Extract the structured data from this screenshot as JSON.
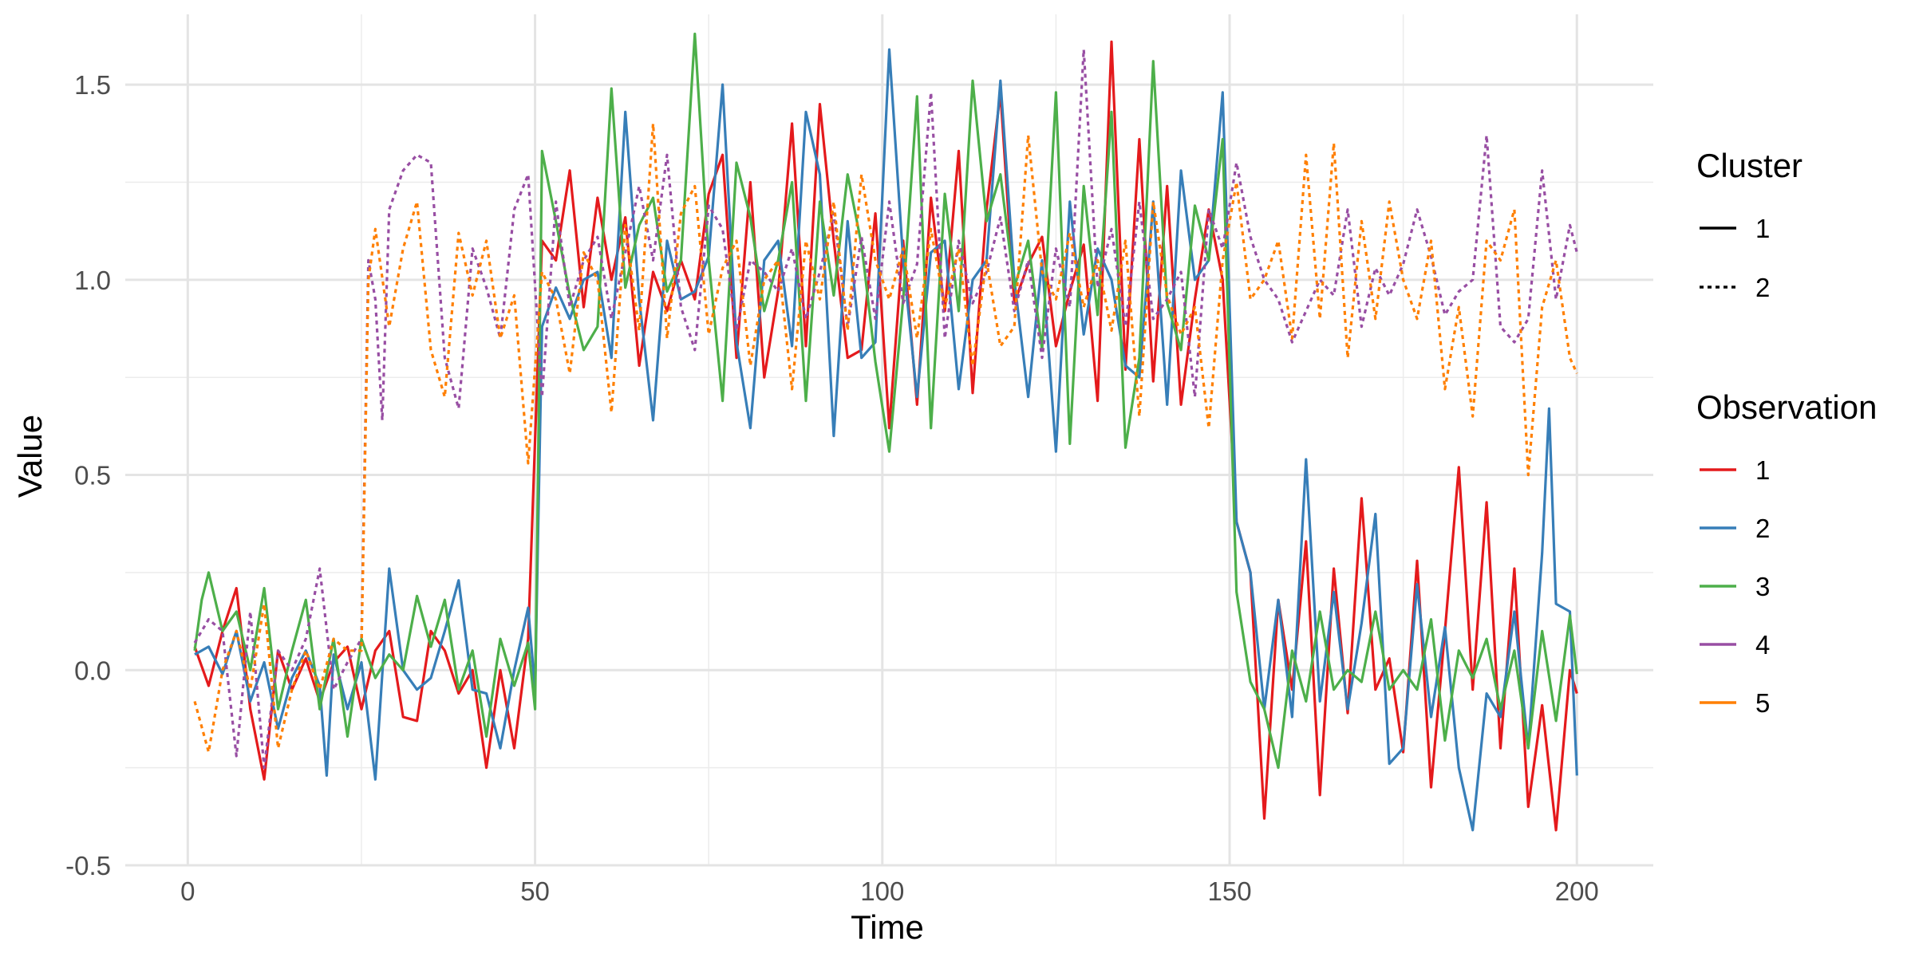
{
  "chart_data": {
    "type": "line",
    "xlabel": "Time",
    "ylabel": "Value",
    "xlim": [
      -9,
      211
    ],
    "ylim": [
      -0.5,
      1.68
    ],
    "x_ticks": [
      0,
      50,
      100,
      150,
      200
    ],
    "x_tick_labels": [
      "0",
      "50",
      "100",
      "150",
      "200"
    ],
    "y_ticks": [
      -0.5,
      0,
      0.5,
      1,
      1.5
    ],
    "y_tick_labels": [
      "-0.5",
      "0.0",
      "0.5",
      "1.0",
      "1.5"
    ],
    "grid": true,
    "legend_position": "right",
    "legend_cluster": {
      "title": "Cluster",
      "items": [
        {
          "label": "1",
          "linetype": "solid"
        },
        {
          "label": "2",
          "linetype": "dotted"
        }
      ]
    },
    "legend_observation": {
      "title": "Observation",
      "items": [
        {
          "label": "1",
          "color": "#e41a1c"
        },
        {
          "label": "2",
          "color": "#377eb8"
        },
        {
          "label": "3",
          "color": "#4daf4a"
        },
        {
          "label": "4",
          "color": "#984ea3"
        },
        {
          "label": "5",
          "color": "#ff7f00"
        }
      ]
    },
    "series": [
      {
        "observation": "1",
        "cluster": "1",
        "color": "#e41a1c",
        "linetype": "solid",
        "x": [
          1,
          3,
          5,
          7,
          9,
          11,
          13,
          15,
          17,
          19,
          21,
          23,
          25,
          27,
          29,
          31,
          33,
          35,
          37,
          39,
          41,
          43,
          45,
          47,
          49,
          51,
          53,
          55,
          57,
          59,
          61,
          63,
          65,
          67,
          69,
          71,
          73,
          75,
          77,
          79,
          81,
          83,
          85,
          87,
          89,
          91,
          93,
          95,
          97,
          99,
          101,
          103,
          105,
          107,
          109,
          111,
          113,
          115,
          117,
          119,
          121,
          123,
          125,
          127,
          129,
          131,
          133,
          135,
          137,
          139,
          141,
          143,
          145,
          147,
          149,
          151,
          153,
          155,
          157,
          159,
          161,
          163,
          165,
          167,
          169,
          171,
          173,
          175,
          177,
          179,
          181,
          183,
          185,
          187,
          189,
          191,
          193,
          195,
          197,
          199,
          200
        ],
        "y": [
          0.06,
          -0.04,
          0.1,
          0.21,
          -0.1,
          -0.28,
          0.05,
          -0.05,
          0.03,
          -0.08,
          0.02,
          0.06,
          -0.1,
          0.05,
          0.1,
          -0.12,
          -0.13,
          0.1,
          0.05,
          -0.06,
          0.0,
          -0.25,
          0.0,
          -0.2,
          0.08,
          1.1,
          1.05,
          1.28,
          0.93,
          1.21,
          1.0,
          1.16,
          0.78,
          1.02,
          0.92,
          1.05,
          0.95,
          1.22,
          1.32,
          0.8,
          1.25,
          0.75,
          0.97,
          1.4,
          0.83,
          1.45,
          1.1,
          0.8,
          0.82,
          1.17,
          0.62,
          1.1,
          0.68,
          1.21,
          0.92,
          1.33,
          0.71,
          1.18,
          1.48,
          0.94,
          1.04,
          1.11,
          0.83,
          0.97,
          1.09,
          0.69,
          1.61,
          0.77,
          1.36,
          0.74,
          1.24,
          0.68,
          0.95,
          1.18,
          1.0,
          0.38,
          0.25,
          -0.38,
          0.18,
          -0.05,
          0.33,
          -0.32,
          0.26,
          -0.11,
          0.44,
          -0.05,
          0.03,
          -0.21,
          0.28,
          -0.3,
          0.1,
          0.52,
          -0.05,
          0.43,
          -0.2,
          0.26,
          -0.35,
          -0.09,
          -0.41,
          0.0,
          -0.06
        ]
      },
      {
        "observation": "2",
        "cluster": "1",
        "color": "#377eb8",
        "linetype": "solid",
        "x": [
          1,
          3,
          5,
          7,
          9,
          11,
          13,
          15,
          17,
          19,
          20,
          21,
          23,
          25,
          27,
          29,
          31,
          33,
          35,
          37,
          39,
          41,
          43,
          45,
          47,
          49,
          50,
          51,
          53,
          55,
          57,
          59,
          61,
          63,
          65,
          67,
          69,
          71,
          73,
          75,
          77,
          79,
          81,
          83,
          85,
          87,
          89,
          91,
          93,
          95,
          97,
          99,
          101,
          103,
          105,
          107,
          109,
          111,
          113,
          115,
          117,
          119,
          121,
          123,
          125,
          127,
          129,
          131,
          133,
          135,
          137,
          139,
          141,
          143,
          145,
          147,
          149,
          151,
          153,
          155,
          157,
          159,
          161,
          163,
          165,
          167,
          169,
          171,
          173,
          175,
          177,
          179,
          181,
          183,
          185,
          187,
          189,
          191,
          193,
          195,
          196,
          197,
          199,
          200
        ],
        "y": [
          0.04,
          0.06,
          -0.01,
          0.1,
          -0.08,
          0.02,
          -0.15,
          -0.02,
          0.05,
          -0.04,
          -0.27,
          0.04,
          -0.1,
          0.02,
          -0.28,
          0.26,
          0.0,
          -0.05,
          -0.02,
          0.1,
          0.23,
          -0.05,
          -0.06,
          -0.2,
          0.0,
          0.16,
          -0.05,
          0.88,
          0.98,
          0.9,
          1.0,
          1.02,
          0.8,
          1.43,
          0.95,
          0.64,
          1.1,
          0.95,
          0.97,
          1.06,
          1.5,
          0.84,
          0.62,
          1.05,
          1.1,
          0.83,
          1.43,
          1.27,
          0.6,
          1.15,
          0.8,
          0.84,
          1.59,
          1.05,
          0.7,
          1.07,
          1.1,
          0.72,
          1.0,
          1.05,
          1.51,
          1.0,
          0.7,
          1.05,
          0.56,
          1.2,
          0.86,
          1.08,
          1.0,
          0.78,
          0.75,
          1.2,
          0.68,
          1.28,
          1.0,
          1.05,
          1.48,
          0.38,
          0.25,
          -0.1,
          0.18,
          -0.12,
          0.54,
          -0.08,
          0.2,
          -0.1,
          0.12,
          0.4,
          -0.24,
          -0.2,
          0.22,
          -0.12,
          0.11,
          -0.25,
          -0.41,
          -0.06,
          -0.12,
          0.15,
          -0.2,
          0.3,
          0.67,
          0.17,
          0.15,
          -0.27
        ]
      },
      {
        "observation": "3",
        "cluster": "1",
        "color": "#4daf4a",
        "linetype": "solid",
        "x": [
          1,
          2,
          3,
          5,
          7,
          9,
          11,
          13,
          15,
          17,
          19,
          21,
          23,
          25,
          27,
          29,
          31,
          33,
          35,
          37,
          39,
          41,
          43,
          45,
          47,
          49,
          50,
          51,
          53,
          55,
          57,
          59,
          61,
          63,
          65,
          67,
          69,
          71,
          73,
          75,
          77,
          79,
          81,
          83,
          85,
          87,
          89,
          91,
          93,
          95,
          97,
          99,
          101,
          103,
          105,
          107,
          109,
          111,
          113,
          115,
          117,
          119,
          121,
          123,
          125,
          127,
          129,
          131,
          133,
          135,
          137,
          139,
          141,
          143,
          145,
          147,
          149,
          151,
          153,
          155,
          157,
          159,
          161,
          163,
          165,
          167,
          169,
          171,
          173,
          175,
          177,
          179,
          181,
          183,
          185,
          187,
          189,
          191,
          193,
          195,
          197,
          199,
          200
        ],
        "y": [
          0.05,
          0.18,
          0.25,
          0.1,
          0.15,
          0.0,
          0.21,
          -0.1,
          0.05,
          0.18,
          -0.1,
          0.08,
          -0.17,
          0.08,
          -0.02,
          0.04,
          0.0,
          0.19,
          0.06,
          0.18,
          -0.05,
          0.05,
          -0.17,
          0.08,
          -0.04,
          0.07,
          -0.1,
          1.33,
          1.15,
          0.96,
          0.82,
          0.88,
          1.49,
          0.98,
          1.14,
          1.21,
          0.97,
          1.05,
          1.63,
          1.05,
          0.69,
          1.3,
          1.16,
          0.92,
          1.05,
          1.25,
          0.69,
          1.2,
          0.96,
          1.27,
          1.09,
          0.79,
          0.56,
          0.95,
          1.47,
          0.62,
          1.22,
          0.92,
          1.51,
          1.15,
          1.27,
          0.98,
          1.1,
          0.82,
          1.48,
          0.58,
          1.24,
          0.91,
          1.43,
          0.57,
          0.8,
          1.56,
          0.94,
          0.82,
          1.19,
          1.05,
          1.36,
          0.2,
          -0.03,
          -0.1,
          -0.25,
          0.05,
          -0.08,
          0.15,
          -0.05,
          0.0,
          -0.03,
          0.15,
          -0.05,
          0.0,
          -0.05,
          0.13,
          -0.18,
          0.05,
          -0.02,
          0.08,
          -0.1,
          0.05,
          -0.2,
          0.1,
          -0.13,
          0.14,
          -0.01
        ]
      },
      {
        "observation": "4",
        "cluster": "2",
        "color": "#984ea3",
        "linetype": "dotted",
        "x": [
          1,
          3,
          5,
          7,
          9,
          11,
          13,
          15,
          17,
          19,
          21,
          23,
          25,
          26,
          27,
          28,
          29,
          31,
          33,
          35,
          37,
          39,
          41,
          43,
          45,
          47,
          49,
          51,
          53,
          55,
          57,
          59,
          61,
          63,
          65,
          67,
          69,
          71,
          73,
          75,
          77,
          79,
          81,
          83,
          85,
          87,
          89,
          91,
          93,
          95,
          97,
          99,
          101,
          103,
          105,
          107,
          109,
          111,
          113,
          115,
          117,
          119,
          121,
          123,
          125,
          127,
          129,
          131,
          133,
          135,
          137,
          139,
          141,
          143,
          145,
          147,
          149,
          151,
          153,
          155,
          157,
          159,
          161,
          163,
          165,
          167,
          169,
          171,
          173,
          175,
          177,
          179,
          181,
          183,
          185,
          187,
          189,
          191,
          193,
          195,
          197,
          199,
          200
        ],
        "y": [
          0.07,
          0.13,
          0.1,
          -0.22,
          0.15,
          -0.25,
          0.05,
          0.0,
          0.08,
          0.26,
          -0.05,
          0.02,
          0.08,
          1.05,
          0.95,
          0.64,
          1.18,
          1.28,
          1.32,
          1.3,
          0.8,
          0.67,
          1.08,
          0.98,
          0.85,
          1.18,
          1.27,
          0.7,
          1.2,
          0.93,
          1.05,
          1.11,
          0.9,
          1.07,
          1.24,
          1.05,
          1.32,
          0.93,
          0.82,
          1.19,
          1.13,
          0.87,
          1.05,
          1.02,
          0.97,
          1.08,
          0.9,
          1.02,
          1.17,
          0.88,
          1.11,
          0.9,
          1.2,
          0.94,
          1.04,
          1.48,
          0.85,
          1.1,
          0.94,
          1.02,
          1.16,
          0.92,
          1.05,
          0.8,
          1.08,
          0.93,
          1.59,
          0.98,
          1.13,
          0.88,
          1.2,
          0.9,
          0.95,
          1.02,
          0.7,
          1.18,
          1.08,
          1.3,
          1.11,
          1.0,
          0.95,
          0.84,
          0.92,
          1.0,
          0.96,
          1.18,
          0.88,
          1.03,
          0.96,
          1.04,
          1.18,
          1.06,
          0.91,
          0.97,
          1.0,
          1.37,
          0.88,
          0.84,
          0.9,
          1.28,
          0.95,
          1.14,
          1.07
        ]
      },
      {
        "observation": "5",
        "cluster": "2",
        "color": "#ff7f00",
        "linetype": "dotted",
        "x": [
          1,
          3,
          5,
          7,
          9,
          11,
          13,
          15,
          17,
          19,
          21,
          23,
          25,
          26,
          27,
          29,
          31,
          33,
          35,
          37,
          39,
          41,
          43,
          45,
          47,
          49,
          51,
          53,
          55,
          57,
          59,
          61,
          63,
          65,
          67,
          69,
          71,
          73,
          75,
          77,
          79,
          81,
          83,
          85,
          87,
          89,
          91,
          93,
          95,
          97,
          99,
          101,
          103,
          105,
          107,
          109,
          111,
          113,
          115,
          117,
          119,
          121,
          123,
          125,
          127,
          129,
          131,
          133,
          135,
          137,
          139,
          141,
          143,
          145,
          147,
          149,
          151,
          153,
          155,
          157,
          159,
          161,
          163,
          165,
          167,
          169,
          171,
          173,
          175,
          177,
          179,
          181,
          183,
          185,
          187,
          189,
          191,
          193,
          195,
          197,
          199,
          200
        ],
        "y": [
          -0.08,
          -0.21,
          0.0,
          0.1,
          -0.05,
          0.17,
          -0.2,
          -0.05,
          0.05,
          -0.05,
          0.08,
          0.05,
          0.05,
          1.0,
          1.13,
          0.88,
          1.08,
          1.2,
          0.82,
          0.7,
          1.12,
          0.96,
          1.1,
          0.85,
          0.96,
          0.53,
          1.02,
          0.95,
          0.76,
          1.07,
          1.0,
          0.66,
          1.14,
          0.87,
          1.4,
          0.85,
          1.17,
          1.24,
          0.86,
          1.03,
          1.1,
          0.78,
          1.0,
          1.05,
          0.72,
          1.1,
          0.95,
          1.2,
          0.87,
          1.27,
          1.05,
          0.95,
          1.08,
          0.85,
          1.13,
          0.93,
          1.08,
          0.78,
          1.05,
          0.83,
          0.88,
          1.37,
          1.02,
          0.95,
          1.12,
          0.93,
          1.05,
          0.87,
          1.1,
          0.65,
          1.2,
          0.96,
          0.86,
          0.93,
          0.62,
          1.05,
          1.25,
          0.95,
          1.0,
          1.1,
          0.85,
          1.32,
          0.9,
          1.35,
          0.8,
          1.15,
          0.9,
          1.2,
          1.0,
          0.9,
          1.1,
          0.72,
          0.93,
          0.65,
          1.1,
          1.05,
          1.18,
          0.5,
          0.93,
          1.05,
          0.8,
          0.76
        ]
      }
    ]
  }
}
